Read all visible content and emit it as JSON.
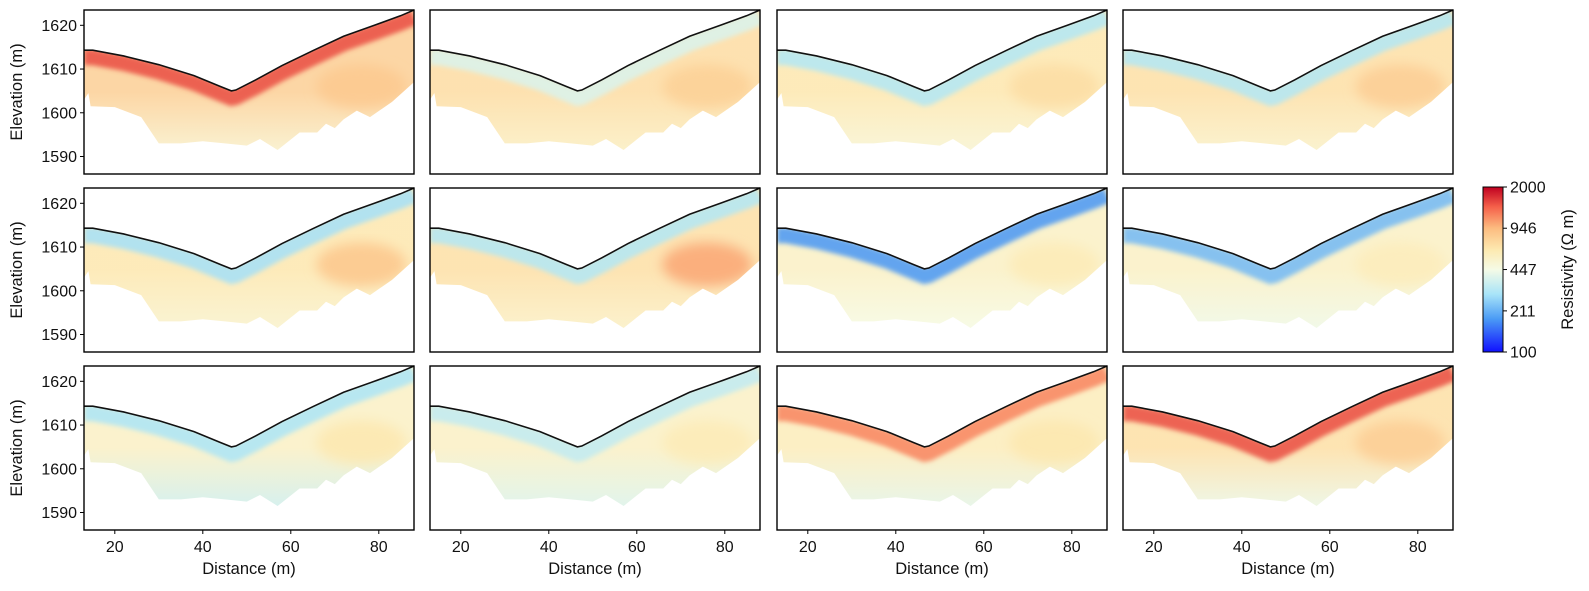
{
  "chart_data": {
    "type": "heatmap",
    "layout": {
      "rows": 3,
      "cols": 4
    },
    "xlabel": "Distance (m)",
    "ylabel": "Elevation (m)",
    "xlim": [
      13,
      88
    ],
    "ylim": [
      1586,
      1623.5
    ],
    "xticks": [
      20,
      40,
      60,
      80
    ],
    "yticks": [
      1590,
      1600,
      1610,
      1620
    ],
    "grid": false,
    "colorbar": {
      "label": "Resistivity (Ω m)",
      "scale": "log",
      "range": [
        100,
        2000
      ],
      "ticks": [
        100,
        211,
        447,
        946,
        2000
      ],
      "colors": [
        "#1010ff",
        "#4a9af5",
        "#a8e4f8",
        "#f5fbe6",
        "#fde9b0",
        "#fcbc80",
        "#f5604a",
        "#c00020"
      ],
      "position": "right"
    },
    "topography": {
      "x": [
        13,
        15,
        22,
        30,
        38,
        44,
        46.5,
        47.5,
        52,
        58,
        65,
        72,
        79,
        85,
        88
      ],
      "y": [
        1614.3,
        1614.3,
        1613,
        1611,
        1608.5,
        1606,
        1605,
        1605.2,
        1607.5,
        1610.8,
        1614.2,
        1617.5,
        1620,
        1622.2,
        1623.5
      ]
    },
    "model_bottom": {
      "x": [
        13,
        14,
        14.5,
        20,
        26,
        30,
        35,
        40,
        45,
        50,
        53,
        57,
        62,
        66,
        68,
        70,
        72,
        75,
        78,
        83,
        88
      ],
      "y": [
        1603,
        1604.5,
        1601.5,
        1601.3,
        1599,
        1593,
        1593,
        1593.5,
        1593,
        1592.5,
        1594,
        1591.5,
        1595.5,
        1595.5,
        1597.5,
        1596.5,
        1598.5,
        1600.5,
        1599,
        1602.5,
        1607
      ]
    },
    "panels": [
      {
        "surface": 1500,
        "middle": 800,
        "right": 850,
        "deep": 520
      },
      {
        "surface": 380,
        "middle": 720,
        "right": 800,
        "deep": 560
      },
      {
        "surface": 300,
        "middle": 650,
        "right": 720,
        "deep": 500
      },
      {
        "surface": 300,
        "middle": 700,
        "right": 820,
        "deep": 540
      },
      {
        "surface": 280,
        "middle": 650,
        "right": 880,
        "deep": 520
      },
      {
        "surface": 300,
        "middle": 700,
        "right": 1050,
        "deep": 550
      },
      {
        "surface": 180,
        "middle": 560,
        "right": 620,
        "deep": 450
      },
      {
        "surface": 220,
        "middle": 560,
        "right": 600,
        "deep": 430
      },
      {
        "surface": 290,
        "middle": 560,
        "right": 650,
        "deep": 350
      },
      {
        "surface": 330,
        "middle": 560,
        "right": 620,
        "deep": 380
      },
      {
        "surface": 1200,
        "middle": 600,
        "right": 650,
        "deep": 400
      },
      {
        "surface": 1500,
        "middle": 700,
        "right": 820,
        "deep": 420
      }
    ]
  }
}
